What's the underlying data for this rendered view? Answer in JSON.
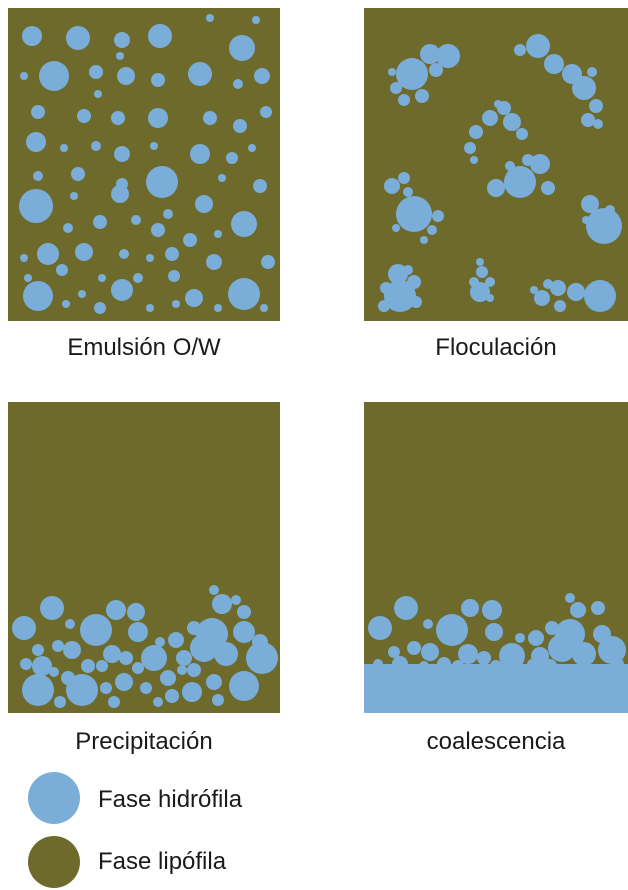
{
  "colors": {
    "hydrophilic": "#7aaed9",
    "lipophilic": "#6d6a2c",
    "text": "#1a1a1a"
  },
  "panels": [
    {
      "id": "emulsion",
      "label": "Emulsión O/W"
    },
    {
      "id": "flocculation",
      "label": "Floculación"
    },
    {
      "id": "precipitation",
      "label": "Precipitación"
    },
    {
      "id": "coalescence",
      "label": "coalescencia"
    }
  ],
  "legend": [
    {
      "id": "hydrophilic",
      "label": "Fase hidrófila",
      "color": "#7aaed9"
    },
    {
      "id": "lipophilic",
      "label": "Fase lipófila",
      "color": "#6d6a2c"
    }
  ]
}
